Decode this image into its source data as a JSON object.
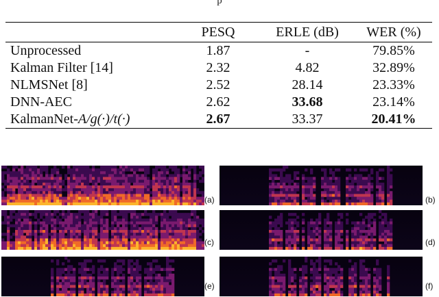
{
  "caption_fragment": "p",
  "table": {
    "headers": [
      "",
      "PESQ",
      "ERLE (dB)",
      "WER (%)"
    ],
    "rows": [
      {
        "method": "Unprocessed",
        "pesq": "1.87",
        "erle": "-",
        "wer": "79.85%"
      },
      {
        "method": "Kalman Filter [14]",
        "pesq": "2.32",
        "erle": "4.82",
        "wer": "32.89%"
      },
      {
        "method": "NLMSNet [8]",
        "pesq": "2.52",
        "erle": "28.14",
        "wer": "23.33%"
      },
      {
        "method": "DNN-AEC",
        "pesq": "2.62",
        "erle": "33.68",
        "wer": "23.14%"
      },
      {
        "method_prefix": "KalmanNet-",
        "method_math": "A/g(·)/t(·)",
        "pesq": "2.67",
        "erle": "33.37",
        "wer": "20.41%"
      }
    ],
    "bold_cells": [
      "rows.3.erle",
      "rows.4.pesq",
      "rows.4.wer"
    ]
  },
  "figure": {
    "colormap": [
      "#0b0418",
      "#3b0a4f",
      "#7a1a6e",
      "#c0354f",
      "#f06a28",
      "#fcb52c"
    ],
    "panels": [
      {
        "label": "(a)",
        "content": "speech+noise"
      },
      {
        "label": "(b)",
        "content": "speech"
      },
      {
        "label": "(c)",
        "content": "speech+noise"
      },
      {
        "label": "(d)",
        "content": "speech"
      },
      {
        "label": "(e)",
        "content": "speech"
      },
      {
        "label": "(f)",
        "content": "speech"
      }
    ]
  }
}
